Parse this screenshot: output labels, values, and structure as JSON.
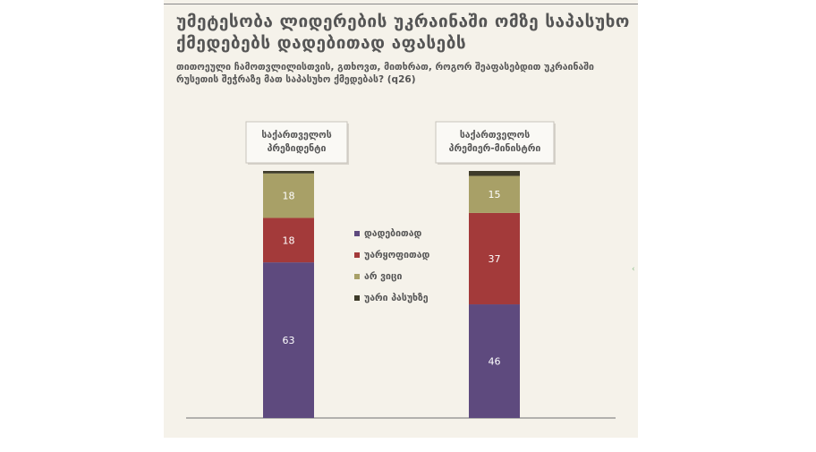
{
  "chart_data": {
    "type": "bar",
    "stacked": true,
    "title": "უმეტესობა ლიდერების უკრაინაში ომზე საპასუხო ქმედებებს დადებითად აფასებს",
    "subtitle": "თითოეული ჩამოთვლილისთვის, გთხოვთ, მითხრათ, როგორ შეაფასებდით უკრაინაში რუსეთის შეჭრაზე მათ საპასუხო ქმედებას? (q26)",
    "categories": [
      "საქართველოს პრეზიდენტი",
      "საქართველოს პრემიერ-მინისტრი"
    ],
    "series": [
      {
        "name": "დადებითად",
        "values": [
          63,
          46
        ],
        "color": "#5e4a7e"
      },
      {
        "name": "უარყოფითად",
        "values": [
          18,
          37
        ],
        "color": "#a33a3a"
      },
      {
        "name": "არ ვიცი",
        "values": [
          18,
          15
        ],
        "color": "#a8a067"
      },
      {
        "name": "უარი პასუხზე",
        "values": [
          1,
          2
        ],
        "color": "#3e3b2a"
      }
    ],
    "ylim": [
      0,
      100
    ],
    "legend_position": "center",
    "grid": false,
    "value_label_color": "#ffffff",
    "axis_color": "#8a8a8a"
  }
}
